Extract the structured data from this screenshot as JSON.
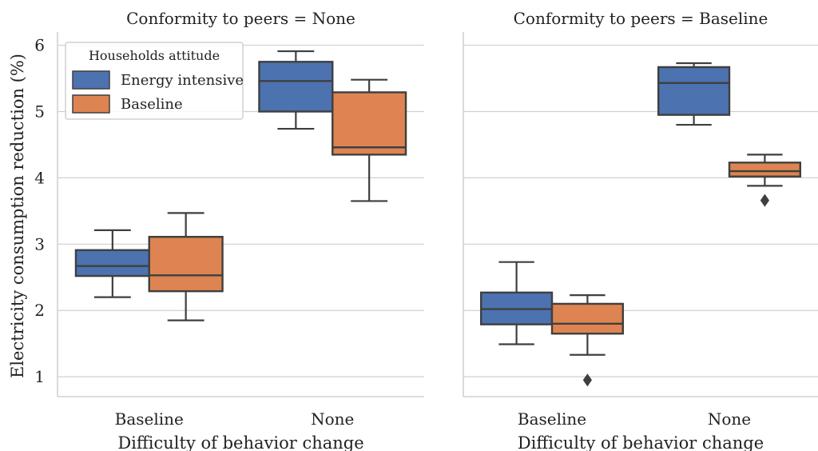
{
  "chart_data": {
    "type": "boxplot",
    "ylabel": "Electricity consumption reduction (%)",
    "xlabel": "Difficulty of behavior change",
    "y_ticks": [
      1,
      2,
      3,
      4,
      5,
      6
    ],
    "ylim": [
      0.7,
      6.2
    ],
    "grid": true,
    "legend": {
      "title": "Households attitude",
      "placement": "top-left",
      "entries": [
        {
          "label": "Energy intensive",
          "color": "#4c72b0"
        },
        {
          "label": "Baseline",
          "color": "#dd8452"
        }
      ]
    },
    "categories": [
      "Baseline",
      "None"
    ],
    "panels": [
      {
        "title": "Conformity to peers = None",
        "groups": [
          {
            "category": "Baseline",
            "boxes": [
              {
                "series": "Energy intensive",
                "whisker_low": 2.2,
                "q1": 2.52,
                "median": 2.67,
                "q3": 2.91,
                "whisker_high": 3.21,
                "outliers": []
              },
              {
                "series": "Baseline",
                "whisker_low": 1.85,
                "q1": 2.29,
                "median": 2.53,
                "q3": 3.11,
                "whisker_high": 3.47,
                "outliers": []
              }
            ]
          },
          {
            "category": "None",
            "boxes": [
              {
                "series": "Energy intensive",
                "whisker_low": 4.74,
                "q1": 5.0,
                "median": 5.46,
                "q3": 5.75,
                "whisker_high": 5.91,
                "outliers": []
              },
              {
                "series": "Baseline",
                "whisker_low": 3.65,
                "q1": 4.35,
                "median": 4.46,
                "q3": 5.29,
                "whisker_high": 5.48,
                "outliers": []
              }
            ]
          }
        ]
      },
      {
        "title": "Conformity to peers = Baseline",
        "groups": [
          {
            "category": "Baseline",
            "boxes": [
              {
                "series": "Energy intensive",
                "whisker_low": 1.49,
                "q1": 1.79,
                "median": 2.02,
                "q3": 2.27,
                "whisker_high": 2.73,
                "outliers": []
              },
              {
                "series": "Baseline",
                "whisker_low": 1.33,
                "q1": 1.65,
                "median": 1.8,
                "q3": 2.1,
                "whisker_high": 2.23,
                "outliers": [
                  0.95
                ]
              }
            ]
          },
          {
            "category": "None",
            "boxes": [
              {
                "series": "Energy intensive",
                "whisker_low": 4.8,
                "q1": 4.95,
                "median": 5.43,
                "q3": 5.67,
                "whisker_high": 5.73,
                "outliers": []
              },
              {
                "series": "Baseline",
                "whisker_low": 3.88,
                "q1": 4.02,
                "median": 4.1,
                "q3": 4.23,
                "whisker_high": 4.35,
                "outliers": [
                  3.66
                ]
              }
            ]
          }
        ]
      }
    ]
  }
}
